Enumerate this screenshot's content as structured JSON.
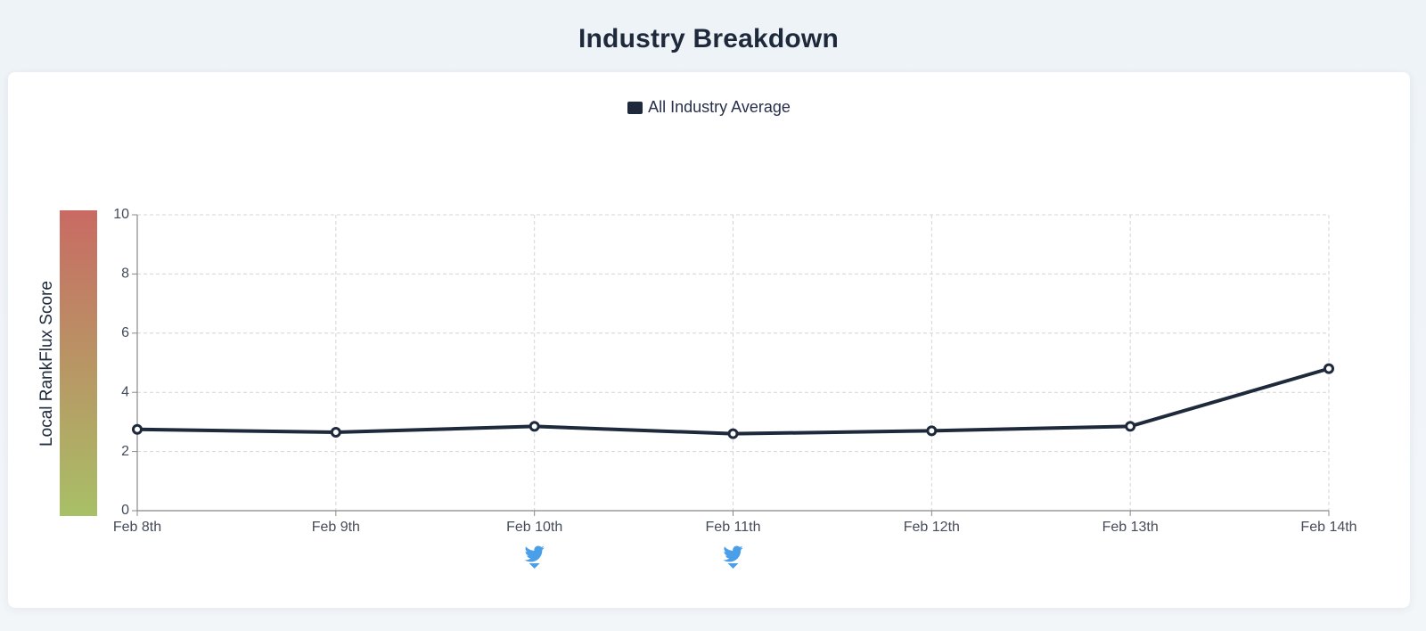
{
  "page": {
    "title": "Industry Breakdown"
  },
  "legend": {
    "label": "All Industry Average",
    "color": "#1e293b"
  },
  "colors": {
    "line": "#1e293b",
    "grid": "#d4d4d8",
    "scale_top": "#c96a63",
    "scale_bottom": "#a8c066",
    "event_icon": "#4a9fe8"
  },
  "chart_data": {
    "type": "line",
    "title": "",
    "xlabel": "",
    "ylabel": "Local RankFlux Score",
    "categories": [
      "Feb 8th",
      "Feb 9th",
      "Feb 10th",
      "Feb 11th",
      "Feb 12th",
      "Feb 13th",
      "Feb 14th"
    ],
    "series": [
      {
        "name": "All Industry Average",
        "values": [
          2.75,
          2.65,
          2.85,
          2.6,
          2.7,
          2.85,
          4.8
        ]
      }
    ],
    "ylim": [
      0,
      10
    ],
    "yticks": [
      0,
      2,
      4,
      6,
      8,
      10
    ],
    "grid": true,
    "legend_position": "top-center",
    "event_markers": [
      {
        "category": "Feb 10th",
        "icon": "twitter-bird-icon"
      },
      {
        "category": "Feb 11th",
        "icon": "twitter-bird-icon"
      }
    ]
  }
}
